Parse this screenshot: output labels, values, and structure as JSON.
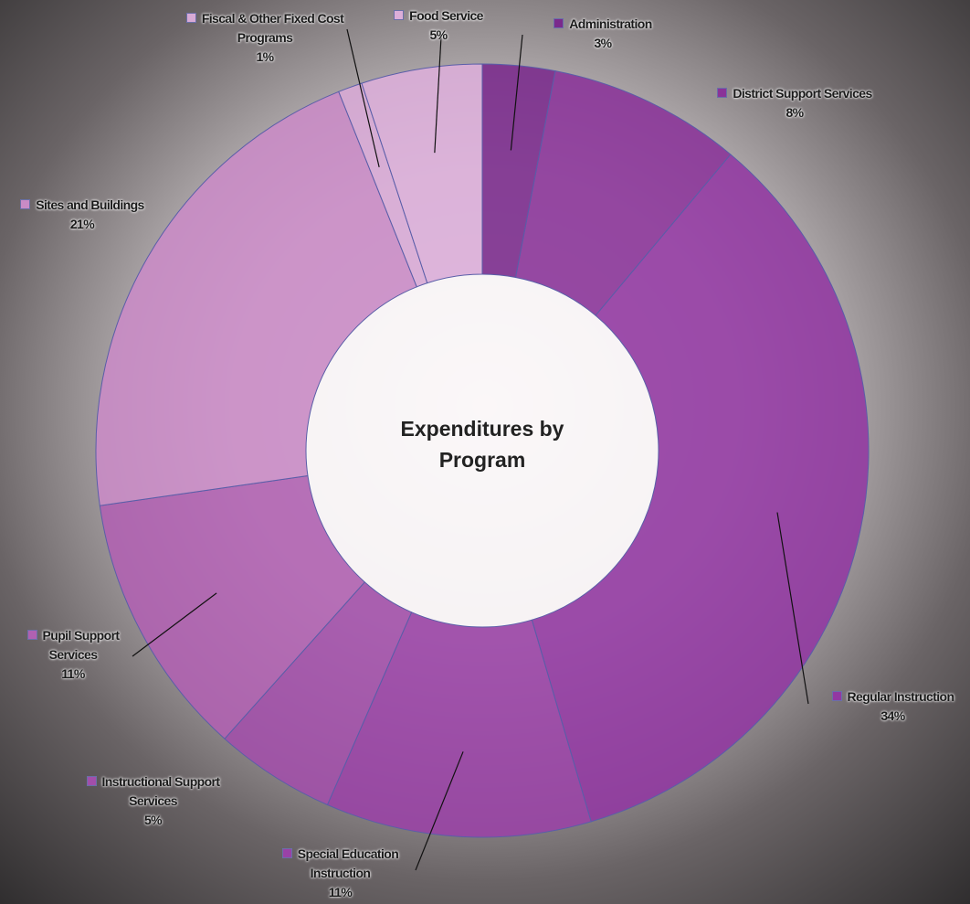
{
  "chart_data": {
    "type": "donut",
    "title": "Expenditures by Program",
    "categories": [
      "Administration",
      "District Support Services",
      "Regular Instruction",
      "Special Education Instruction",
      "Instructional Support Services",
      "Pupil Support Services",
      "Sites and Buildings",
      "Fiscal & Other Fixed Cost Programs",
      "Food Service"
    ],
    "values": [
      3,
      8,
      34,
      11,
      5,
      11,
      21,
      1,
      5
    ],
    "value_labels": [
      "3%",
      "8%",
      "34%",
      "11%",
      "5%",
      "11%",
      "21%",
      "1%",
      "5%"
    ],
    "colors": [
      "#7a2a8c",
      "#8a3398",
      "#9238a2",
      "#9a42a6",
      "#a24eaa",
      "#b061b2",
      "#c98bc6",
      "#d8aad6",
      "#dcaed9"
    ]
  }
}
